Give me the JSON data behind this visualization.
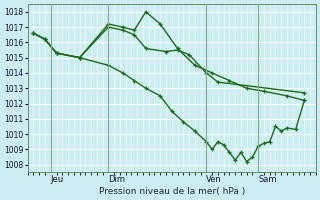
{
  "xlabel": "Pression niveau de la mer( hPa )",
  "bg_color": "#cceef2",
  "grid_color": "#ffffff",
  "line_color": "#1a6b1a",
  "vline_color": "#8aaa8a",
  "ylim": [
    1007.5,
    1018.5
  ],
  "yticks": [
    1008,
    1009,
    1010,
    1011,
    1012,
    1013,
    1014,
    1015,
    1016,
    1017,
    1018
  ],
  "day_labels": [
    "Jeu",
    "Dim",
    "Ven",
    "Sam"
  ],
  "day_positions": [
    0.08,
    0.28,
    0.62,
    0.8
  ],
  "series": [
    {
      "x": [
        0.02,
        0.06,
        0.1,
        0.18,
        0.28,
        0.33,
        0.37,
        0.41,
        0.48,
        0.52,
        0.56,
        0.62,
        0.66,
        0.96
      ],
      "y": [
        1016.6,
        1016.2,
        1015.3,
        1015.0,
        1017.0,
        1016.8,
        1016.5,
        1015.6,
        1015.4,
        1015.5,
        1015.2,
        1014.0,
        1013.4,
        1012.7
      ]
    },
    {
      "x": [
        0.02,
        0.06,
        0.1,
        0.18,
        0.28,
        0.33,
        0.37,
        0.41,
        0.46,
        0.52,
        0.58,
        0.64,
        0.7,
        0.76,
        0.82,
        0.9,
        0.96
      ],
      "y": [
        1016.6,
        1016.2,
        1015.3,
        1015.0,
        1017.2,
        1017.0,
        1016.8,
        1018.0,
        1017.2,
        1015.6,
        1014.5,
        1014.0,
        1013.5,
        1013.0,
        1012.8,
        1012.5,
        1012.2
      ]
    },
    {
      "x": [
        0.02,
        0.06,
        0.1,
        0.18,
        0.28,
        0.33,
        0.37,
        0.41,
        0.46,
        0.5,
        0.54,
        0.58,
        0.62,
        0.64,
        0.66,
        0.68,
        0.7,
        0.72,
        0.74,
        0.76,
        0.78,
        0.8,
        0.82,
        0.84,
        0.86,
        0.88,
        0.9,
        0.93,
        0.96
      ],
      "y": [
        1016.6,
        1016.2,
        1015.3,
        1015.0,
        1014.5,
        1014.0,
        1013.5,
        1013.0,
        1012.5,
        1011.5,
        1010.8,
        1010.2,
        1009.5,
        1009.0,
        1009.5,
        1009.3,
        1008.8,
        1008.3,
        1008.8,
        1008.2,
        1008.5,
        1009.2,
        1009.4,
        1009.5,
        1010.5,
        1010.2,
        1010.4,
        1010.3,
        1012.2
      ]
    }
  ],
  "xlim": [
    0.0,
    1.0
  ],
  "figsize": [
    3.2,
    2.0
  ],
  "dpi": 100
}
